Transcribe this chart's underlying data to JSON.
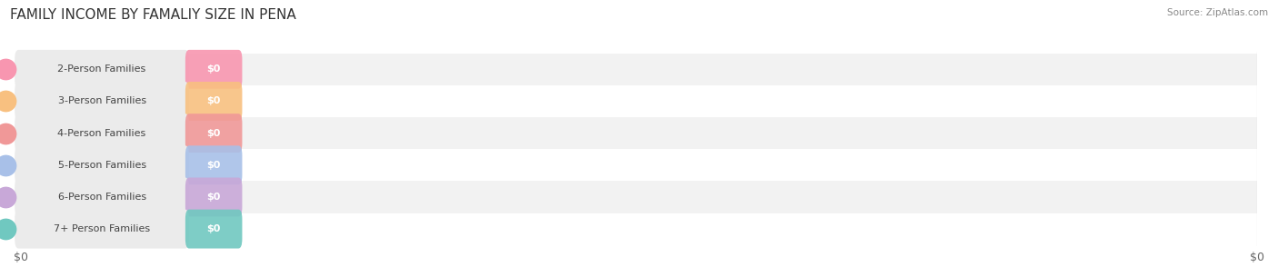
{
  "title": "FAMILY INCOME BY FAMALIY SIZE IN PENA",
  "source": "Source: ZipAtlas.com",
  "categories": [
    "2-Person Families",
    "3-Person Families",
    "4-Person Families",
    "5-Person Families",
    "6-Person Families",
    "7+ Person Families"
  ],
  "values": [
    0,
    0,
    0,
    0,
    0,
    0
  ],
  "bar_colors": [
    "#f896b0",
    "#f8c080",
    "#f09898",
    "#a8c0e8",
    "#c8a8d8",
    "#70c8c0"
  ],
  "background_color": "#ffffff",
  "row_bg_odd": "#f2f2f2",
  "row_bg_even": "#ffffff",
  "value_label": "$0",
  "xlim_min": 0,
  "xlim_max": 100,
  "title_fontsize": 11,
  "source_fontsize": 7.5,
  "bar_label_fontsize": 8,
  "tick_fontsize": 9,
  "grid_color": "#cccccc",
  "tick_color": "#666666",
  "label_bg_color": "#ebebeb",
  "label_text_color": "#444444"
}
